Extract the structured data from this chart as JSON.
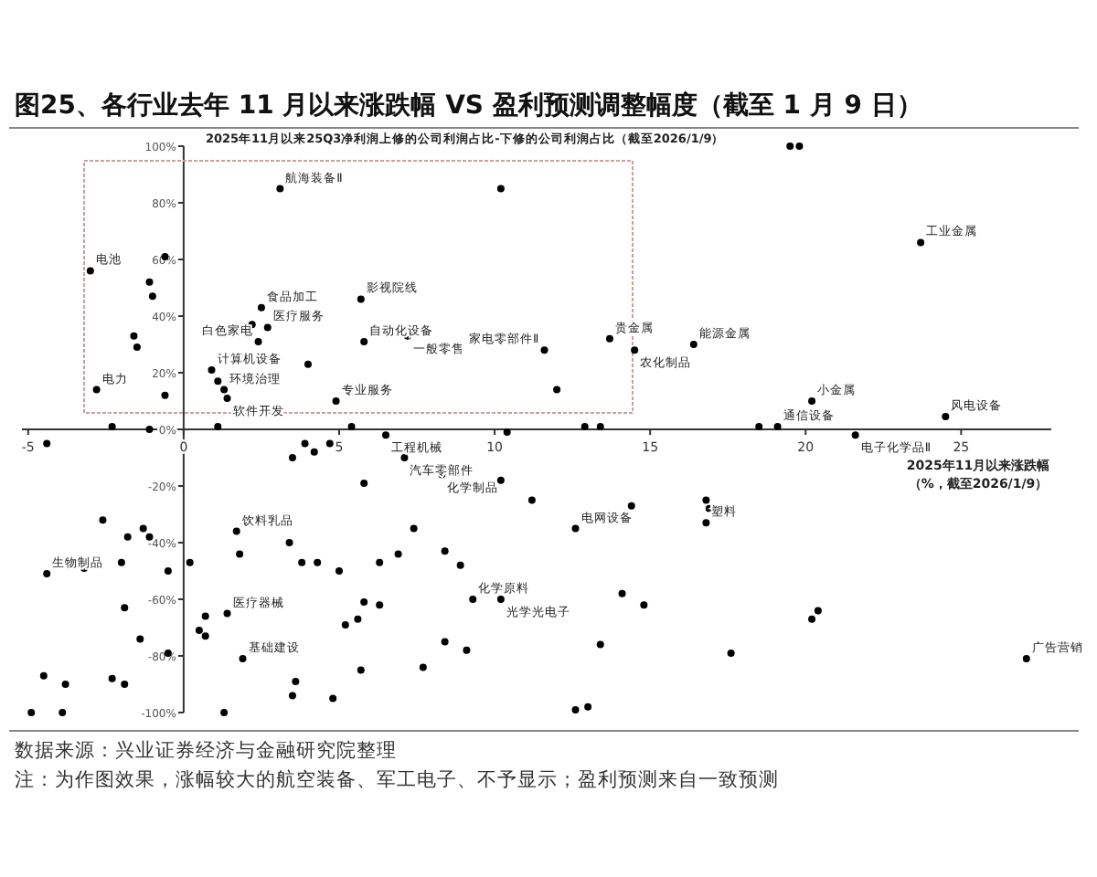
{
  "chart_data": {
    "type": "scatter",
    "title": "图25、各行业去年 11 月以来涨跌幅 VS 盈利预测调整幅度（截至 1 月 9 日）",
    "ylabel": "2025年11月以来25Q3净利润上修的公司利润占比-下修的公司利润占比（截至2026/1/9）",
    "xlabel": "2025年11月以来涨跌幅（%，截至2026/1/9）",
    "xlim": [
      -5.2,
      27.9
    ],
    "ylim": [
      -100,
      100
    ],
    "xticks": [
      -5,
      0,
      5,
      10,
      15,
      20,
      25
    ],
    "yticks": [
      {
        "value": 100,
        "label": "100%"
      },
      {
        "value": 80,
        "label": "80%"
      },
      {
        "value": 60,
        "label": "60%"
      },
      {
        "value": 40,
        "label": "40%"
      },
      {
        "value": 20,
        "label": "20%"
      },
      {
        "value": 0,
        "label": "0%"
      },
      {
        "value": -20,
        "label": "-20%"
      },
      {
        "value": -40,
        "label": "-40%"
      },
      {
        "value": -60,
        "label": "-60%"
      },
      {
        "value": -80,
        "label": "-80%"
      },
      {
        "value": -100,
        "label": "-100%"
      }
    ],
    "marker": "circle",
    "grid": false,
    "color": "#000000",
    "x": [
      3.1,
      10.2,
      -3.0,
      -0.6,
      -1.1,
      -1.0,
      2.5,
      5.7,
      2.2,
      2.7,
      2.4,
      5.8,
      7.2,
      -1.6,
      -1.5,
      4.0,
      0.9,
      -2.8,
      1.1,
      1.3,
      1.4,
      -0.6,
      4.9,
      -2.3,
      -1.1,
      1.1,
      5.4,
      6.5,
      19.5,
      19.8,
      23.7,
      13.7,
      14.5,
      16.4,
      12.0,
      11.6,
      20.2,
      24.5,
      12.9,
      13.4,
      18.5,
      19.1,
      21.6,
      10.4,
      -4.4,
      3.9,
      4.2,
      4.7,
      3.5,
      7.1,
      5.8,
      8.3,
      10.2,
      11.2,
      -2.6,
      -1.8,
      -1.3,
      -1.1,
      1.7,
      3.4,
      7.4,
      8.4,
      0.2,
      1.8,
      3.8,
      4.3,
      5.0,
      6.3,
      6.9,
      8.9,
      -3.2,
      -4.4,
      -2.0,
      -0.5,
      -1.9,
      0.7,
      1.4,
      5.8,
      6.3,
      5.6,
      5.2,
      9.3,
      10.2,
      0.5,
      0.7,
      -1.4,
      -0.5,
      1.9,
      8.4,
      9.1,
      5.7,
      7.7,
      -4.5,
      -3.8,
      -2.3,
      -1.9,
      3.6,
      3.5,
      4.8,
      1.3,
      -4.9,
      -3.9,
      14.4,
      16.8,
      16.9,
      16.8,
      12.6,
      14.1,
      14.8,
      20.4,
      20.2,
      13.4,
      17.6,
      27.1,
      13.0,
      12.6
    ],
    "values": [
      85,
      85,
      56,
      61,
      52,
      47,
      43,
      46,
      37,
      36,
      31,
      31,
      33,
      33,
      29,
      23,
      21,
      14,
      17,
      14,
      11,
      12,
      10,
      1,
      0,
      1,
      1,
      -2,
      100,
      100,
      66,
      32,
      28,
      30,
      14,
      28,
      10,
      4.5,
      1,
      1,
      1,
      1,
      -2,
      -1,
      -5,
      -5,
      -8,
      -5,
      -10,
      -10,
      -19,
      -16,
      -18,
      -25,
      -32,
      -38,
      -35,
      -38,
      -36,
      -40,
      -35,
      -43,
      -47,
      -44,
      -47,
      -47,
      -50,
      -47,
      -44,
      -48,
      -49,
      -51,
      -47,
      -50,
      -63,
      -66,
      -65,
      -61,
      -62,
      -67,
      -69,
      -60,
      -60,
      -71,
      -73,
      -74,
      -79,
      -81,
      -75,
      -78,
      -85,
      -84,
      -87,
      -90,
      -88,
      -90,
      -89,
      -94,
      -95,
      -100,
      -100,
      -100,
      -27,
      -25,
      -28,
      -33,
      -35,
      -58,
      -62,
      -64,
      -67,
      -76,
      -79,
      -81,
      -98,
      -99
    ],
    "annotations": [
      {
        "text": "航海装备Ⅱ",
        "x": 3.1,
        "y": 85
      },
      {
        "text": "电池",
        "x": -3.0,
        "y": 56
      },
      {
        "text": "食品加工",
        "x": 2.5,
        "y": 43
      },
      {
        "text": "影视院线",
        "x": 5.7,
        "y": 46
      },
      {
        "text": "医疗服务",
        "x": 2.7,
        "y": 36
      },
      {
        "text": "白色家电",
        "x": 2.4,
        "y": 31
      },
      {
        "text": "自动化设备",
        "x": 5.8,
        "y": 31
      },
      {
        "text": "一般零售",
        "x": 7.2,
        "y": 33
      },
      {
        "text": "计算机设备",
        "x": 0.9,
        "y": 21
      },
      {
        "text": "电力",
        "x": -2.8,
        "y": 14
      },
      {
        "text": "环境治理",
        "x": 1.3,
        "y": 14
      },
      {
        "text": "软件开发",
        "x": 1.4,
        "y": 11
      },
      {
        "text": "专业服务",
        "x": 4.9,
        "y": 10
      },
      {
        "text": "工业金属",
        "x": 23.7,
        "y": 66
      },
      {
        "text": "贵金属",
        "x": 13.7,
        "y": 32
      },
      {
        "text": "农化制品",
        "x": 14.5,
        "y": 28
      },
      {
        "text": "能源金属",
        "x": 16.4,
        "y": 30
      },
      {
        "text": "家电零部件Ⅱ",
        "x": 11.6,
        "y": 28
      },
      {
        "text": "小金属",
        "x": 20.2,
        "y": 10
      },
      {
        "text": "风电设备",
        "x": 24.5,
        "y": 4.5
      },
      {
        "text": "通信设备",
        "x": 19.1,
        "y": 1
      },
      {
        "text": "电子化学品Ⅱ",
        "x": 21.6,
        "y": -2
      },
      {
        "text": "工程机械",
        "x": 6.5,
        "y": -2
      },
      {
        "text": "汽车零部件",
        "x": 7.1,
        "y": -10
      },
      {
        "text": "化学制品",
        "x": 8.3,
        "y": -16
      },
      {
        "text": "饮料乳品",
        "x": 1.7,
        "y": -36
      },
      {
        "text": "生物制品",
        "x": -4.4,
        "y": -51
      },
      {
        "text": "医疗器械",
        "x": 1.4,
        "y": -65
      },
      {
        "text": "化学原料",
        "x": 9.3,
        "y": -60
      },
      {
        "text": "光学光电子",
        "x": 10.2,
        "y": -60
      },
      {
        "text": "基础建设",
        "x": 1.9,
        "y": -81
      },
      {
        "text": "电网设备",
        "x": 12.6,
        "y": -35
      },
      {
        "text": "塑料",
        "x": 16.8,
        "y": -33
      },
      {
        "text": "广告营销",
        "x": 27.1,
        "y": -81
      },
      "数据来源：兴业证券经济与金融研究院整理",
      "注：为作图效果，涨幅较大的航空装备、军工电子、不予显示；盈利预测来自一致预测"
    ]
  }
}
